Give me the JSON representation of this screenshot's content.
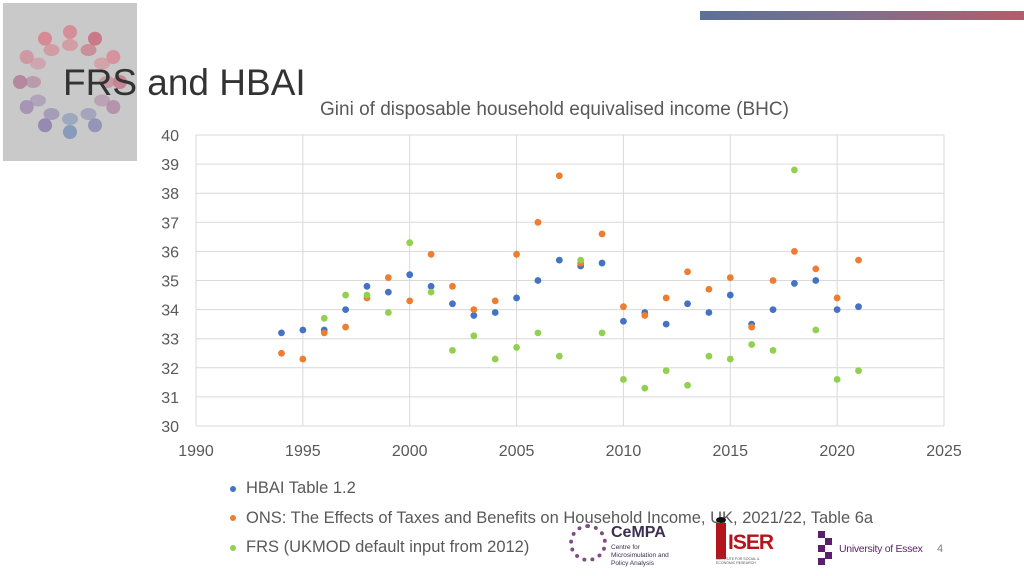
{
  "slide": {
    "title": "FRS and HBAI",
    "page_number": "4"
  },
  "logos": {
    "cempa_name": "CeMPA",
    "cempa_sub": "Centre for Microsimulation and Policy Analysis",
    "iser_name": "ISER",
    "iser_sub": "INSTITUTE FOR SOCIAL & ECONOMIC RESEARCH",
    "essex_name": "University of Essex"
  },
  "colors": {
    "hbai": "#4472c4",
    "ons": "#ed7d31",
    "frs": "#92d050",
    "grid": "#d9d9d9",
    "axis_text": "#595959"
  },
  "chart_data": {
    "type": "scatter",
    "title": "Gini of disposable household equivalised income (BHC)",
    "xlim": [
      1990,
      2025
    ],
    "ylim": [
      30,
      40
    ],
    "x_ticks": [
      1990,
      1995,
      2000,
      2005,
      2010,
      2015,
      2020,
      2025
    ],
    "y_ticks": [
      30,
      31,
      32,
      33,
      34,
      35,
      36,
      37,
      38,
      39,
      40
    ],
    "grid": true,
    "legend_position": "bottom",
    "series": [
      {
        "name": "HBAI Table 1.2",
        "color": "#4472c4",
        "points": [
          [
            1994,
            33.2
          ],
          [
            1995,
            33.3
          ],
          [
            1996,
            33.3
          ],
          [
            1997,
            34.0
          ],
          [
            1998,
            34.8
          ],
          [
            1999,
            34.6
          ],
          [
            2000,
            35.2
          ],
          [
            2001,
            34.8
          ],
          [
            2002,
            34.2
          ],
          [
            2003,
            33.8
          ],
          [
            2004,
            33.9
          ],
          [
            2005,
            34.4
          ],
          [
            2006,
            35.0
          ],
          [
            2007,
            35.7
          ],
          [
            2008,
            35.5
          ],
          [
            2009,
            35.6
          ],
          [
            2010,
            33.6
          ],
          [
            2011,
            33.9
          ],
          [
            2012,
            33.5
          ],
          [
            2013,
            34.2
          ],
          [
            2014,
            33.9
          ],
          [
            2015,
            34.5
          ],
          [
            2016,
            33.5
          ],
          [
            2017,
            34.0
          ],
          [
            2018,
            34.9
          ],
          [
            2019,
            35.0
          ],
          [
            2020,
            34.0
          ],
          [
            2021,
            34.1
          ]
        ]
      },
      {
        "name": "ONS: The Effects of Taxes and Benefits on Household Income, UK, 2021/22, Table 6a",
        "color": "#ed7d31",
        "points": [
          [
            1994,
            32.5
          ],
          [
            1995,
            32.3
          ],
          [
            1996,
            33.2
          ],
          [
            1997,
            33.4
          ],
          [
            1998,
            34.4
          ],
          [
            1999,
            35.1
          ],
          [
            2000,
            34.3
          ],
          [
            2001,
            35.9
          ],
          [
            2002,
            34.8
          ],
          [
            2003,
            34.0
          ],
          [
            2004,
            34.3
          ],
          [
            2005,
            35.9
          ],
          [
            2006,
            37.0
          ],
          [
            2007,
            38.6
          ],
          [
            2008,
            35.6
          ],
          [
            2009,
            36.6
          ],
          [
            2010,
            34.1
          ],
          [
            2011,
            33.8
          ],
          [
            2012,
            34.4
          ],
          [
            2013,
            35.3
          ],
          [
            2014,
            34.7
          ],
          [
            2015,
            35.1
          ],
          [
            2016,
            33.4
          ],
          [
            2017,
            35.0
          ],
          [
            2018,
            36.0
          ],
          [
            2019,
            35.4
          ],
          [
            2020,
            34.4
          ],
          [
            2021,
            35.7
          ]
        ]
      },
      {
        "name": "FRS (UKMOD default input from 2012)",
        "color": "#92d050",
        "points": [
          [
            1996,
            33.7
          ],
          [
            1997,
            34.5
          ],
          [
            1998,
            34.5
          ],
          [
            1999,
            33.9
          ],
          [
            2000,
            36.3
          ],
          [
            2001,
            34.6
          ],
          [
            2002,
            32.6
          ],
          [
            2003,
            33.1
          ],
          [
            2004,
            32.3
          ],
          [
            2005,
            32.7
          ],
          [
            2006,
            33.2
          ],
          [
            2007,
            32.4
          ],
          [
            2008,
            35.7
          ],
          [
            2009,
            33.2
          ],
          [
            2010,
            31.6
          ],
          [
            2011,
            31.3
          ],
          [
            2012,
            31.9
          ],
          [
            2013,
            31.4
          ],
          [
            2014,
            32.4
          ],
          [
            2015,
            32.3
          ],
          [
            2016,
            32.8
          ],
          [
            2017,
            32.6
          ],
          [
            2018,
            38.8
          ],
          [
            2019,
            33.3
          ],
          [
            2020,
            31.6
          ],
          [
            2021,
            31.9
          ]
        ]
      }
    ]
  }
}
